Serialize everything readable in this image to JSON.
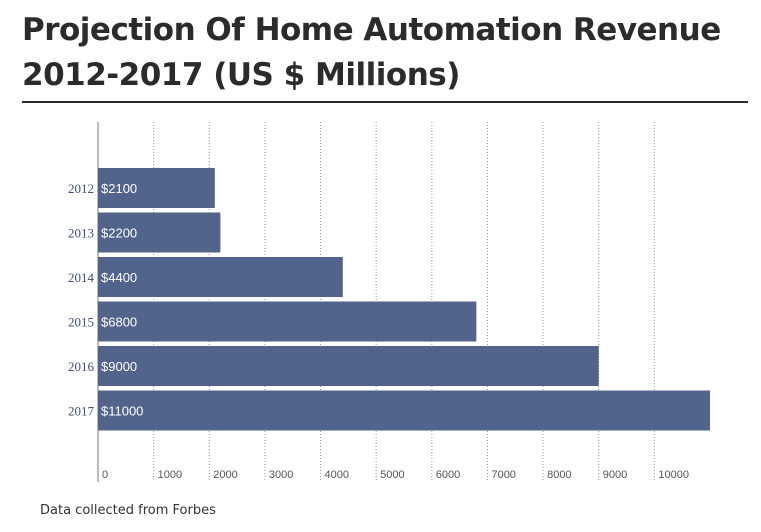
{
  "chart_data": {
    "type": "bar",
    "orientation": "horizontal",
    "title": "Projection Of Home Automation Revenue 2012-2017 (US $ Millions)",
    "categories": [
      "2012",
      "2013",
      "2014",
      "2015",
      "2016",
      "2017"
    ],
    "values": [
      2100,
      2200,
      4400,
      6800,
      9000,
      11000
    ],
    "data_labels": [
      "$2100",
      "$2200",
      "$4400",
      "$6800",
      "$9000",
      "$11000"
    ],
    "x_ticks": [
      0,
      1000,
      2000,
      3000,
      4000,
      5000,
      6000,
      7000,
      8000,
      9000,
      10000
    ],
    "xlim": [
      0,
      11000
    ],
    "xlabel": "",
    "ylabel": "",
    "grid": "vertical-dotted",
    "legend": "none",
    "bar_color": "#52648b"
  },
  "source_note": "Data collected from Forbes",
  "colors": {
    "bar": "#52648b",
    "bar_label": "#ffffff",
    "category_label": "#3f4f78",
    "tick_label": "#555555",
    "grid": "#999999"
  }
}
